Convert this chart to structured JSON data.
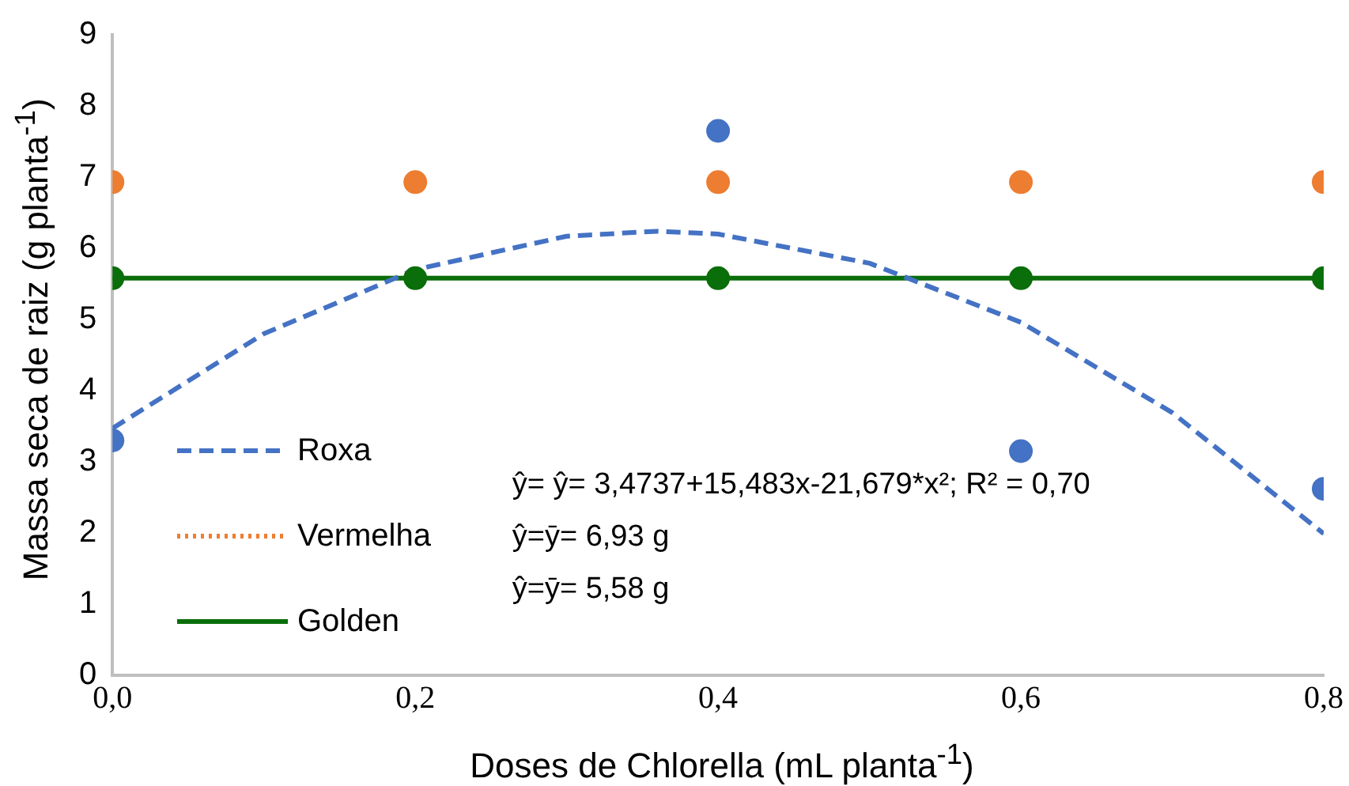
{
  "chart_data": {
    "type": "scatter",
    "xlabel": "Doses de Chlorella (mL planta$^{-1}$)",
    "ylabel": "Massa seca de raiz (g planta$^{-1}$)",
    "xlim": [
      0,
      0.8
    ],
    "xticks": [
      {
        "value": 0,
        "label": "0,0"
      },
      {
        "value": 0.2,
        "label": "0,2"
      },
      {
        "value": 0.4,
        "label": "0,4"
      },
      {
        "value": 0.6,
        "label": "0,6"
      },
      {
        "value": 0.8,
        "label": "0,8"
      }
    ],
    "ylim": [
      0,
      9
    ],
    "yticks": [
      0,
      1,
      2,
      3,
      4,
      5,
      6,
      7,
      8,
      9
    ],
    "grid": false,
    "legend": "bottom left",
    "marker": "circle",
    "annotations": [
      "ŷ= ŷ= 3,4737+15,483x-21,679*x²; R² = 0,70",
      "ŷ=ȳ= 6,93 g",
      "ŷ=ȳ= 5,58 g"
    ],
    "series": [
      {
        "type": "line",
        "name": "Roxa",
        "color": "#4472c4",
        "line_style": "dashed",
        "marker": "none",
        "x": [
          0,
          0.1,
          0.2,
          0.3,
          0.36,
          0.4,
          0.5,
          0.6,
          0.7,
          0.8
        ],
        "values": [
          3.47,
          4.8,
          5.7,
          6.17,
          6.24,
          6.2,
          5.79,
          4.96,
          3.69,
          1.99
        ]
      },
      {
        "type": "line",
        "name": "Vermelha",
        "color": "#ed7d31",
        "line_style": "dotted",
        "marker": "none"
      },
      {
        "type": "line",
        "name": "Golden",
        "color": "#0a6e0a",
        "line_style": "solid",
        "marker": "none",
        "x": [
          0,
          0.8
        ],
        "values": [
          5.58,
          5.58
        ]
      },
      {
        "type": "scatter",
        "color": "#4472c4",
        "x": [
          0,
          0.2,
          0.4,
          0.6,
          0.8
        ],
        "values": [
          3.3,
          null,
          7.65,
          3.15,
          2.62
        ]
      },
      {
        "type": "scatter",
        "color": "#ed7d31",
        "x": [
          0,
          0.2,
          0.4,
          0.6,
          0.8
        ],
        "values": [
          6.93,
          6.93,
          6.93,
          6.93,
          6.93
        ]
      },
      {
        "type": "scatter",
        "color": "#0a6e0a",
        "x": [
          0,
          0.2,
          0.4,
          0.6,
          0.8
        ],
        "values": [
          5.58,
          5.58,
          5.58,
          5.58,
          5.58
        ]
      }
    ]
  }
}
